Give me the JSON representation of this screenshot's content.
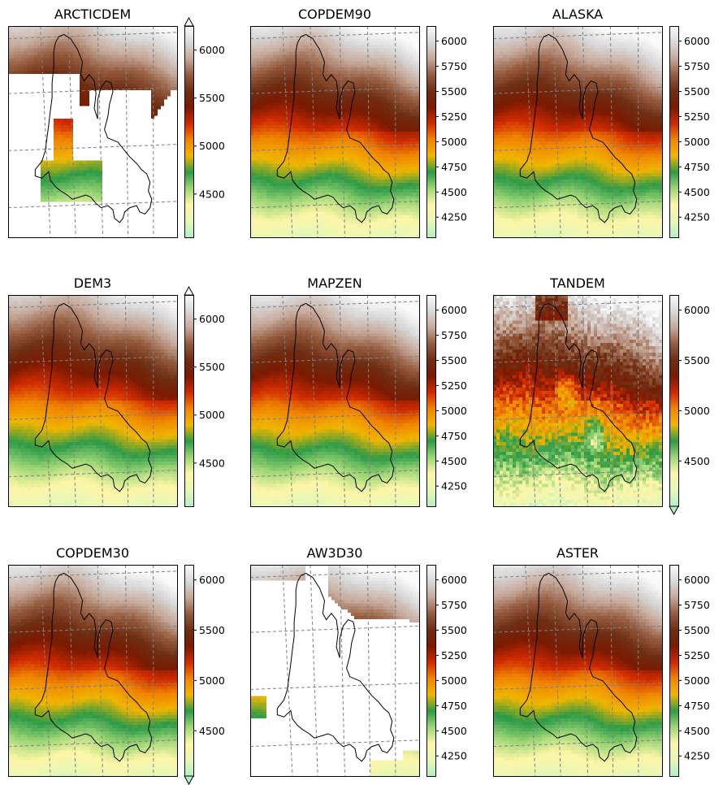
{
  "colors": {
    "grid": "#808080",
    "outline": "#000000",
    "frame": "#000000",
    "cmap": [
      "#b3f0c6",
      "#e7f7b5",
      "#fdf6a8",
      "#9fd676",
      "#2c9b47",
      "#f0b600",
      "#f08500",
      "#d02a00",
      "#7a1a00",
      "#6e2e13",
      "#955c3f",
      "#c6a99a",
      "#d9d9d9",
      "#fafafa"
    ]
  },
  "chart_data": [
    {
      "type": "heatmap",
      "title": "ARCTICDEM",
      "colorbar": {
        "ticks": [
          4500,
          5000,
          5500,
          6000
        ],
        "range": [
          4050,
          6250
        ],
        "extend": "max"
      },
      "coverage": "partial"
    },
    {
      "type": "heatmap",
      "title": "COPDEM90",
      "colorbar": {
        "ticks": [
          4250,
          4500,
          4750,
          5000,
          5250,
          5500,
          5750,
          6000
        ],
        "range": [
          4050,
          6150
        ],
        "extend": "none"
      },
      "coverage": "full"
    },
    {
      "type": "heatmap",
      "title": "ALASKA",
      "colorbar": {
        "ticks": [
          4250,
          4500,
          4750,
          5000,
          5250,
          5500,
          5750,
          6000
        ],
        "range": [
          4050,
          6150
        ],
        "extend": "none"
      },
      "coverage": "full"
    },
    {
      "type": "heatmap",
      "title": "DEM3",
      "colorbar": {
        "ticks": [
          4500,
          5000,
          5500,
          6000
        ],
        "range": [
          4050,
          6250
        ],
        "extend": "max"
      },
      "coverage": "full"
    },
    {
      "type": "heatmap",
      "title": "MAPZEN",
      "colorbar": {
        "ticks": [
          4250,
          4500,
          4750,
          5000,
          5250,
          5500,
          5750,
          6000
        ],
        "range": [
          4050,
          6150
        ],
        "extend": "none"
      },
      "coverage": "full"
    },
    {
      "type": "heatmap",
      "title": "TANDEM",
      "colorbar": {
        "ticks": [
          4500,
          5000,
          5500,
          6000
        ],
        "range": [
          4050,
          6150
        ],
        "extend": "min"
      },
      "coverage": "full-noisy"
    },
    {
      "type": "heatmap",
      "title": "COPDEM30",
      "colorbar": {
        "ticks": [
          4500,
          5000,
          5500,
          6000
        ],
        "range": [
          4050,
          6150
        ],
        "extend": "min"
      },
      "coverage": "full"
    },
    {
      "type": "heatmap",
      "title": "AW3D30",
      "colorbar": {
        "ticks": [
          4250,
          4500,
          4750,
          5000,
          5250,
          5500,
          5750,
          6000
        ],
        "range": [
          4050,
          6150
        ],
        "extend": "none"
      },
      "coverage": "sparse"
    },
    {
      "type": "heatmap",
      "title": "ASTER",
      "colorbar": {
        "ticks": [
          4250,
          4500,
          4750,
          5000,
          5250,
          5500,
          5750,
          6000
        ],
        "range": [
          4050,
          6150
        ],
        "extend": "none"
      },
      "coverage": "full"
    }
  ]
}
